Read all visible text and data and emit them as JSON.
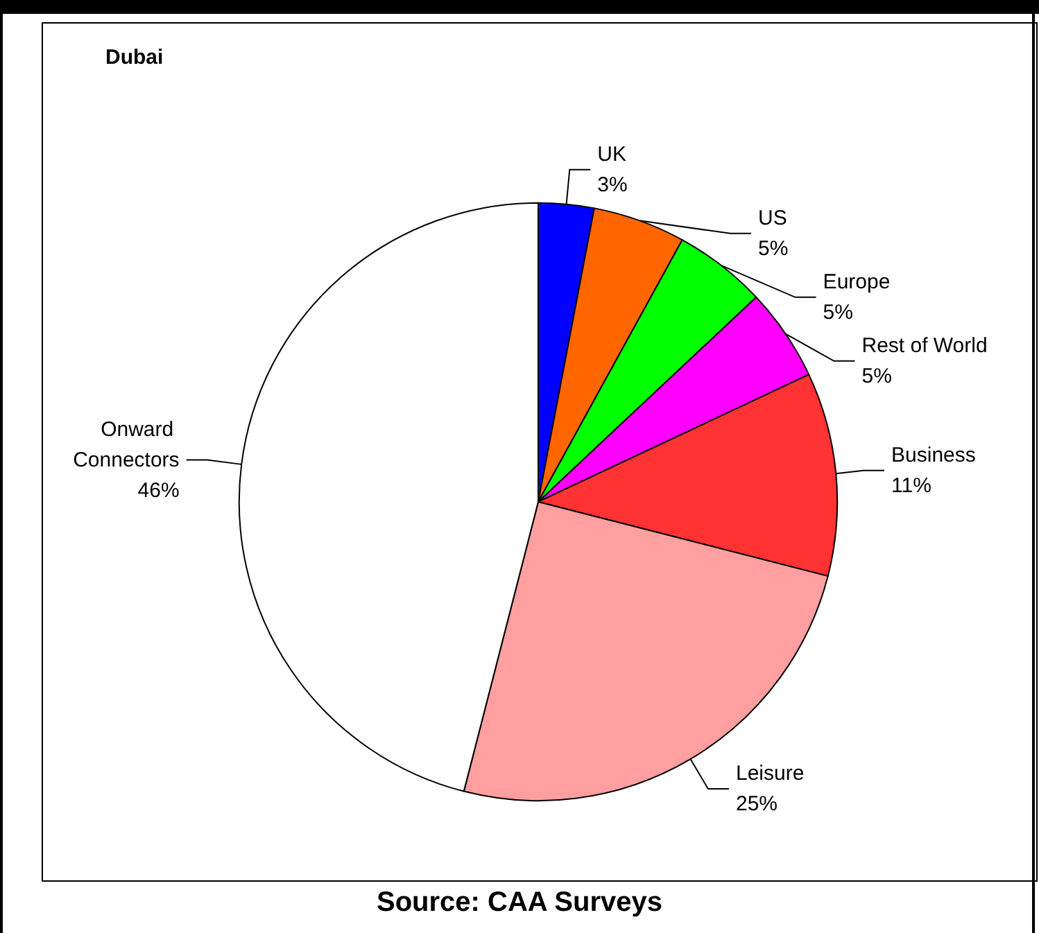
{
  "chart_data": {
    "type": "pie",
    "title": "Dubai",
    "annotations": [
      "Source: CAA Surveys"
    ],
    "categories": [
      "UK",
      "US",
      "Europe",
      "Rest of World",
      "Business",
      "Leisure",
      "Onward Connectors"
    ],
    "values": [
      3,
      5,
      5,
      5,
      11,
      25,
      46
    ],
    "value_labels": [
      "3%",
      "5%",
      "5%",
      "5%",
      "11%",
      "25%",
      "46%"
    ],
    "colors": [
      "#0000ff",
      "#ff6600",
      "#00ff00",
      "#ff00ff",
      "#ff3333",
      "#ff9f9f",
      "#ffffff"
    ],
    "legend": false
  }
}
